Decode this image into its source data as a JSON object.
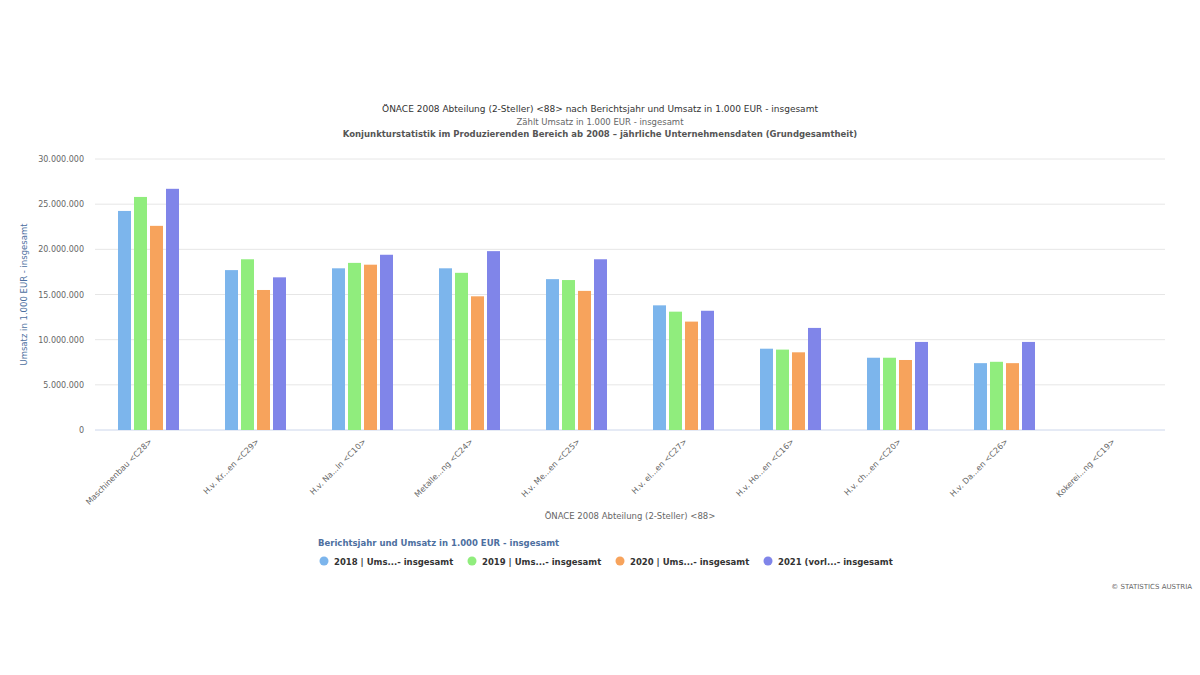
{
  "chart_data": {
    "type": "bar",
    "title": "ÖNACE 2008 Abteilung (2-Steller) <88> nach Berichtsjahr und Umsatz in 1.000 EUR - insgesamt",
    "subtitle": "Zählt Umsatz in 1.000 EUR - insgesamt",
    "annotations": [
      "Konjunkturstatistik im Produzierenden Bereich ab 2008 – jährliche Unternehmensdaten (Grundgesamtheit)",
      "© STATISTICS AUSTRIA"
    ],
    "x_label": "ÖNACE 2008 Abteilung (2-Steller) <88>",
    "y_label": "Umsatz in 1.000 EUR - insgesamt",
    "legend_title": "Berichtsjahr und Umsatz in 1.000 EUR - insgesamt",
    "categories": [
      "Maschinenbau <C28>",
      "H.v. Kr...en <C29>",
      "H.v. Na...ln <C10>",
      "Metalle...ng <C24>",
      "H.v. Me...en <C25>",
      "H.v. el...en <C27>",
      "H.v. Ho...en <C16>",
      "H.v. ch...en <C20>",
      "H.v. Da...en <C26>",
      "Kokerei...ng <C19>"
    ],
    "series": [
      {
        "name": "2018 | Ums...- insgesamt",
        "color": "#7cb5ec",
        "values": [
          24250000,
          17700000,
          17900000,
          17900000,
          16700000,
          13800000,
          9000000,
          8000000,
          7400000,
          null
        ]
      },
      {
        "name": "2019 | Ums...- insgesamt",
        "color": "#90ed7d",
        "values": [
          25800000,
          18900000,
          18500000,
          17400000,
          16600000,
          13100000,
          8900000,
          8000000,
          7550000,
          null
        ]
      },
      {
        "name": "2020 | Ums...- insgesamt",
        "color": "#f7a35c",
        "values": [
          22600000,
          15500000,
          18300000,
          14800000,
          15400000,
          12000000,
          8600000,
          7750000,
          7400000,
          null
        ]
      },
      {
        "name": "2021 (vorl...- insgesamt",
        "color": "#8085e9",
        "values": [
          26700000,
          16900000,
          19400000,
          19800000,
          18900000,
          13200000,
          11300000,
          9750000,
          9750000,
          null
        ]
      }
    ],
    "ylim": [
      0,
      30000000
    ],
    "yticks": [
      0,
      {
        "value": 5000000,
        "label": "5.000.000"
      },
      {
        "value": 10000000,
        "label": "10.000.000"
      },
      {
        "value": 15000000,
        "label": "15.000.000"
      },
      {
        "value": 20000000,
        "label": "20.000.000"
      },
      {
        "value": 25000000,
        "label": "25.000.000"
      },
      {
        "value": 30000000,
        "label": "30.000.000"
      }
    ],
    "grid": true,
    "legend": "bottom"
  }
}
